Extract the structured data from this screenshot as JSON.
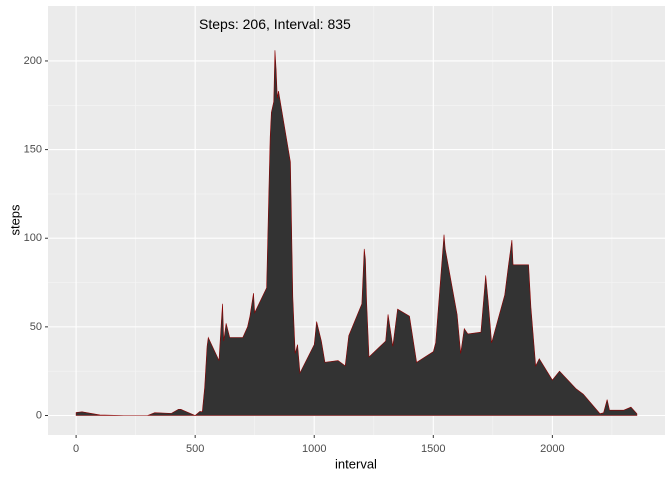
{
  "chart_data": {
    "type": "area",
    "xlabel": "interval",
    "ylabel": "steps",
    "annotation": {
      "text": "Steps: 206, Interval: 835",
      "x": 835,
      "y": 220
    },
    "fill": "#333333",
    "outline": "#8b0000",
    "x": [
      0,
      25,
      100,
      200,
      300,
      330,
      400,
      430,
      440,
      450,
      500,
      520,
      530,
      540,
      550,
      555,
      600,
      610,
      615,
      620,
      630,
      645,
      700,
      720,
      730,
      745,
      750,
      800,
      810,
      815,
      820,
      830,
      835,
      840,
      845,
      850,
      900,
      910,
      920,
      930,
      940,
      1000,
      1010,
      1030,
      1045,
      1100,
      1130,
      1145,
      1200,
      1210,
      1215,
      1220,
      1230,
      1300,
      1310,
      1330,
      1350,
      1400,
      1430,
      1500,
      1510,
      1545,
      1550,
      1600,
      1615,
      1630,
      1645,
      1700,
      1720,
      1730,
      1745,
      1800,
      1815,
      1830,
      1835,
      1900,
      1910,
      1930,
      1945,
      2000,
      2030,
      2100,
      2130,
      2200,
      2215,
      2230,
      2240,
      2300,
      2330,
      2355
    ],
    "values": [
      1.7,
      2.1,
      0.3,
      0,
      0,
      1.6,
      1.2,
      3.5,
      3.5,
      2.9,
      0,
      2.3,
      2.1,
      16,
      39,
      44,
      31,
      53,
      63,
      42,
      52,
      44,
      44,
      50,
      56,
      69,
      58,
      72,
      129,
      157,
      171,
      177,
      206,
      195,
      179,
      183,
      143,
      67,
      35,
      40,
      24,
      40,
      53,
      42,
      30,
      31,
      28,
      45,
      63,
      94,
      88,
      64,
      33,
      42,
      57,
      39,
      60,
      56,
      30,
      36,
      41,
      102,
      94,
      57,
      35,
      49,
      46,
      47,
      79,
      65,
      41,
      68,
      84,
      99,
      85,
      85,
      61,
      28,
      32,
      20,
      25,
      15,
      12,
      1,
      1.5,
      9,
      3,
      3,
      4.7,
      1
    ],
    "xlim": [
      -118,
      2473
    ],
    "ylim": [
      -11,
      231
    ],
    "xticks": [
      0,
      500,
      1000,
      1500,
      2000
    ],
    "yticks": [
      0,
      50,
      100,
      150,
      200
    ],
    "xminorticks": [
      250,
      750,
      1250,
      1750,
      2250
    ],
    "yminorticks": [
      25,
      75,
      125,
      175
    ],
    "grid": true
  }
}
